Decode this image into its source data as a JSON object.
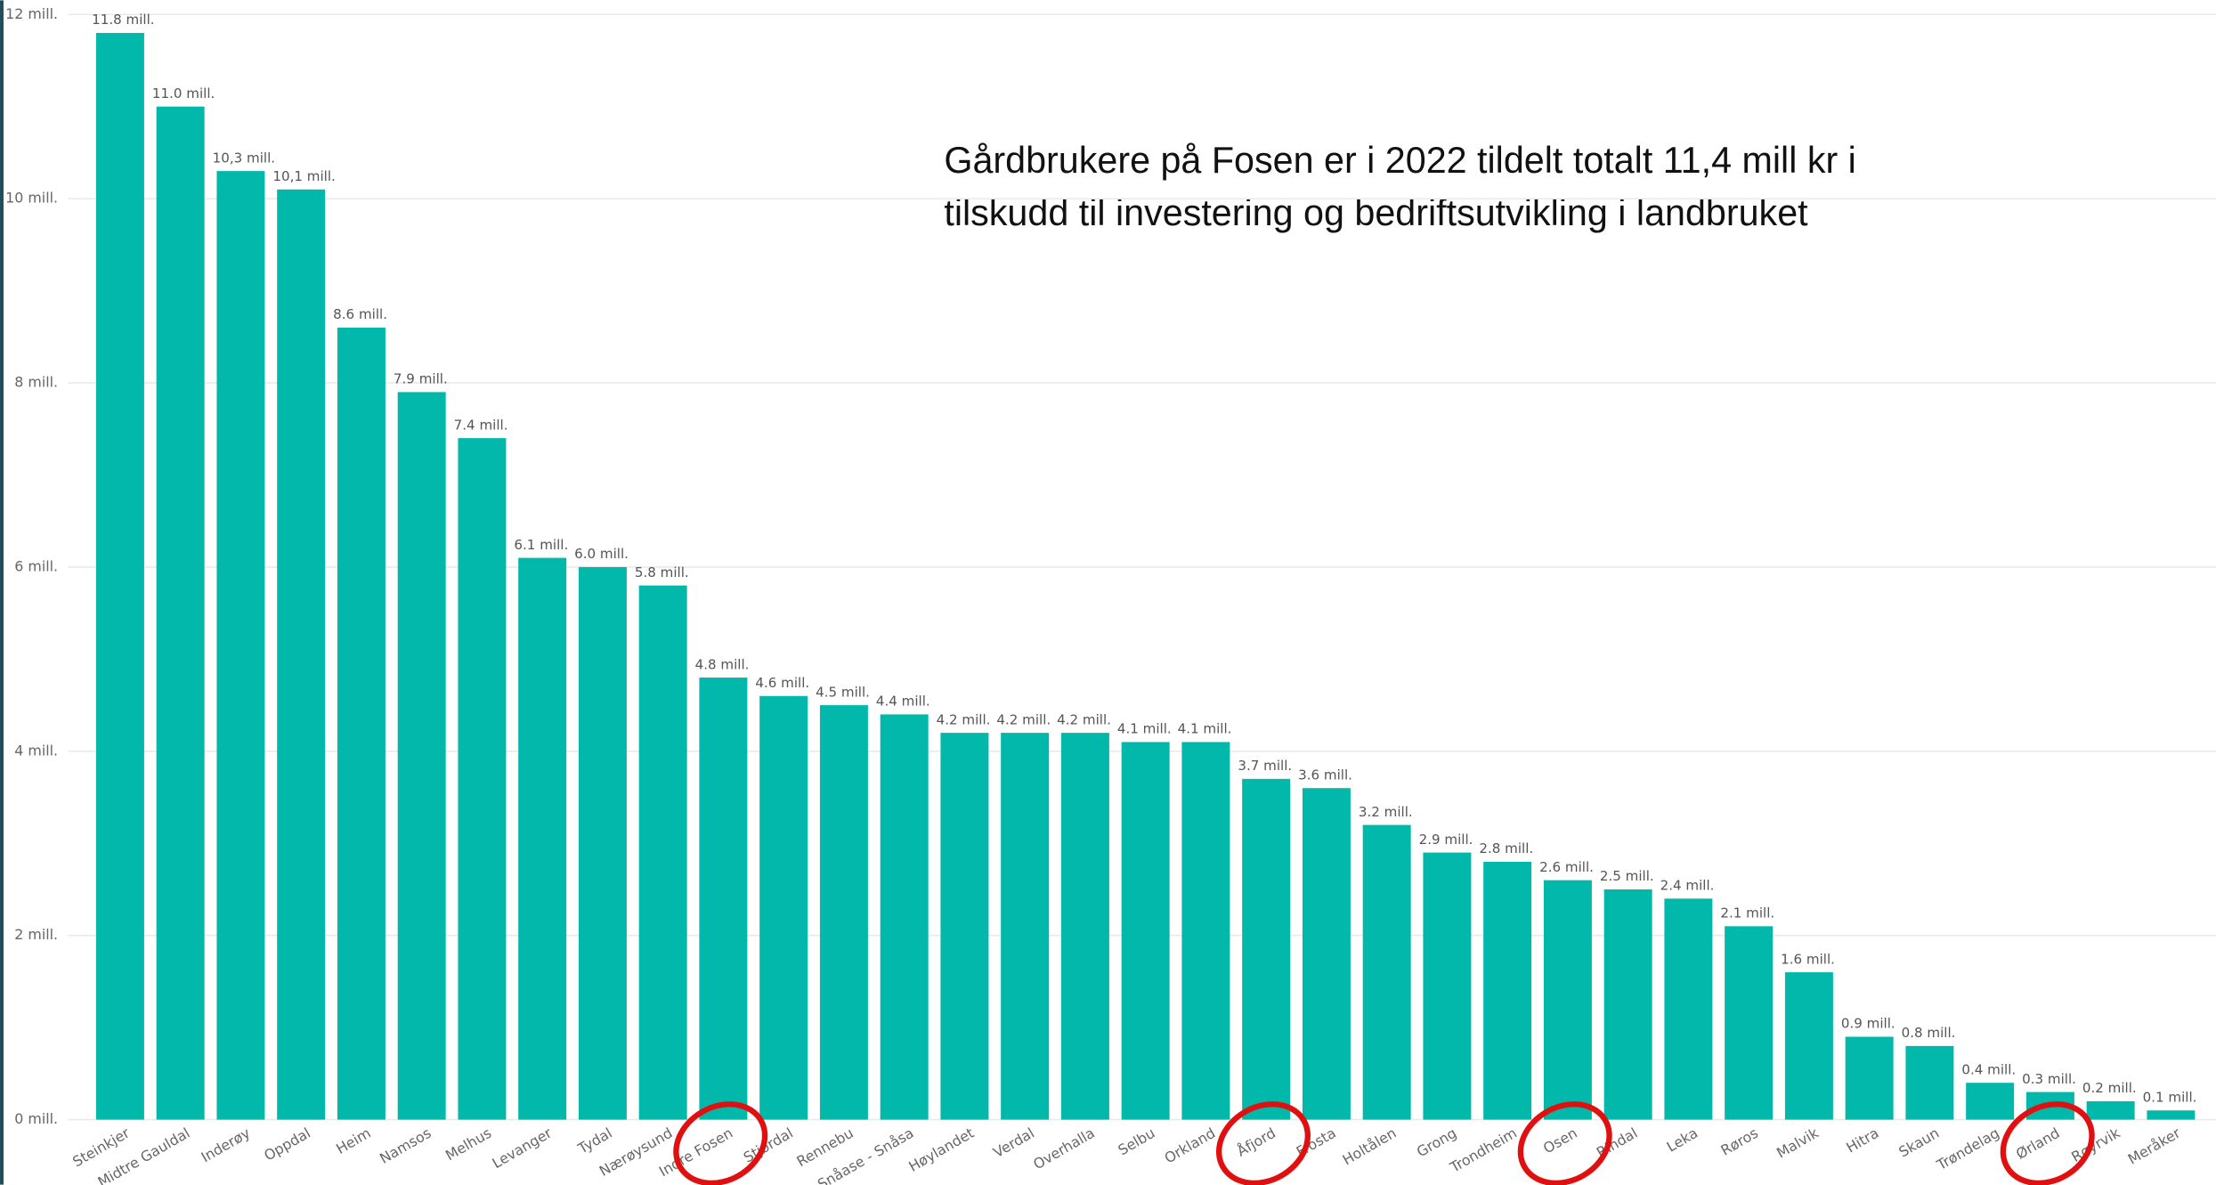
{
  "chart_data": {
    "type": "bar",
    "annotations": [
      "Gårdbrukere på Fosen er i 2022 tildelt totalt 11,4 mill kr i",
      "tilskudd til investering og bedriftsutvikling i landbruket"
    ],
    "categories": [
      "Steinkjer",
      "Midtre Gauldal",
      "Inderøy",
      "Oppdal",
      "Heim",
      "Namsos",
      "Melhus",
      "Levanger",
      "Tydal",
      "Nærøysund",
      "Indre Fosen",
      "Stjørdal",
      "Rennebu",
      "Snåase - Snåsa",
      "Høylandet",
      "Verdal",
      "Overhalla",
      "Selbu",
      "Orkland",
      "Åfjord",
      "Frosta",
      "Holtålen",
      "Grong",
      "Trondheim",
      "Osen",
      "Rindal",
      "Leka",
      "Røros",
      "Malvik",
      "Hitra",
      "Skaun",
      "Trøndelag",
      "Ørland",
      "Røyrvik",
      "Meråker"
    ],
    "values": [
      11.8,
      11.0,
      10.3,
      10.1,
      8.6,
      7.9,
      7.4,
      6.1,
      6.0,
      5.8,
      4.8,
      4.6,
      4.5,
      4.4,
      4.2,
      4.2,
      4.2,
      4.1,
      4.1,
      3.7,
      3.6,
      3.2,
      2.9,
      2.8,
      2.6,
      2.5,
      2.4,
      2.1,
      1.6,
      0.9,
      0.8,
      0.4,
      0.3,
      0.2,
      0.1
    ],
    "value_labels": [
      "11.8 mill.",
      "11.0 mill.",
      "10,3 mill.",
      "10,1 mill.",
      "8.6 mill.",
      "7.9 mill.",
      "7.4 mill.",
      "6.1 mill.",
      "6.0 mill.",
      "5.8 mill.",
      "4.8 mill.",
      "4.6 mill.",
      "4.5 mill.",
      "4.4 mill.",
      "4.2 mill.",
      "4.2 mill.",
      "4.2 mill.",
      "4.1 mill.",
      "4.1 mill.",
      "3.7 mill.",
      "3.6 mill.",
      "3.2 mill.",
      "2.9 mill.",
      "2.8 mill.",
      "2.6 mill.",
      "2.5 mill.",
      "2.4 mill.",
      "2.1 mill.",
      "1.6 mill.",
      "0.9 mill.",
      "0.8 mill.",
      "0.4 mill.",
      "0.3 mill.",
      "0.2 mill.",
      "0.1 mill."
    ],
    "color": "#01b8aa",
    "ylim": [
      0,
      12
    ],
    "yticks": [
      {
        "value": 0,
        "label": "0 mill."
      },
      {
        "value": 2,
        "label": "2 mill."
      },
      {
        "value": 4,
        "label": "4 mill."
      },
      {
        "value": 6,
        "label": "6 mill."
      },
      {
        "value": 8,
        "label": "8 mill."
      },
      {
        "value": 10,
        "label": "10 mill."
      },
      {
        "value": 12,
        "label": "12 mill."
      }
    ],
    "grid": true
  }
}
